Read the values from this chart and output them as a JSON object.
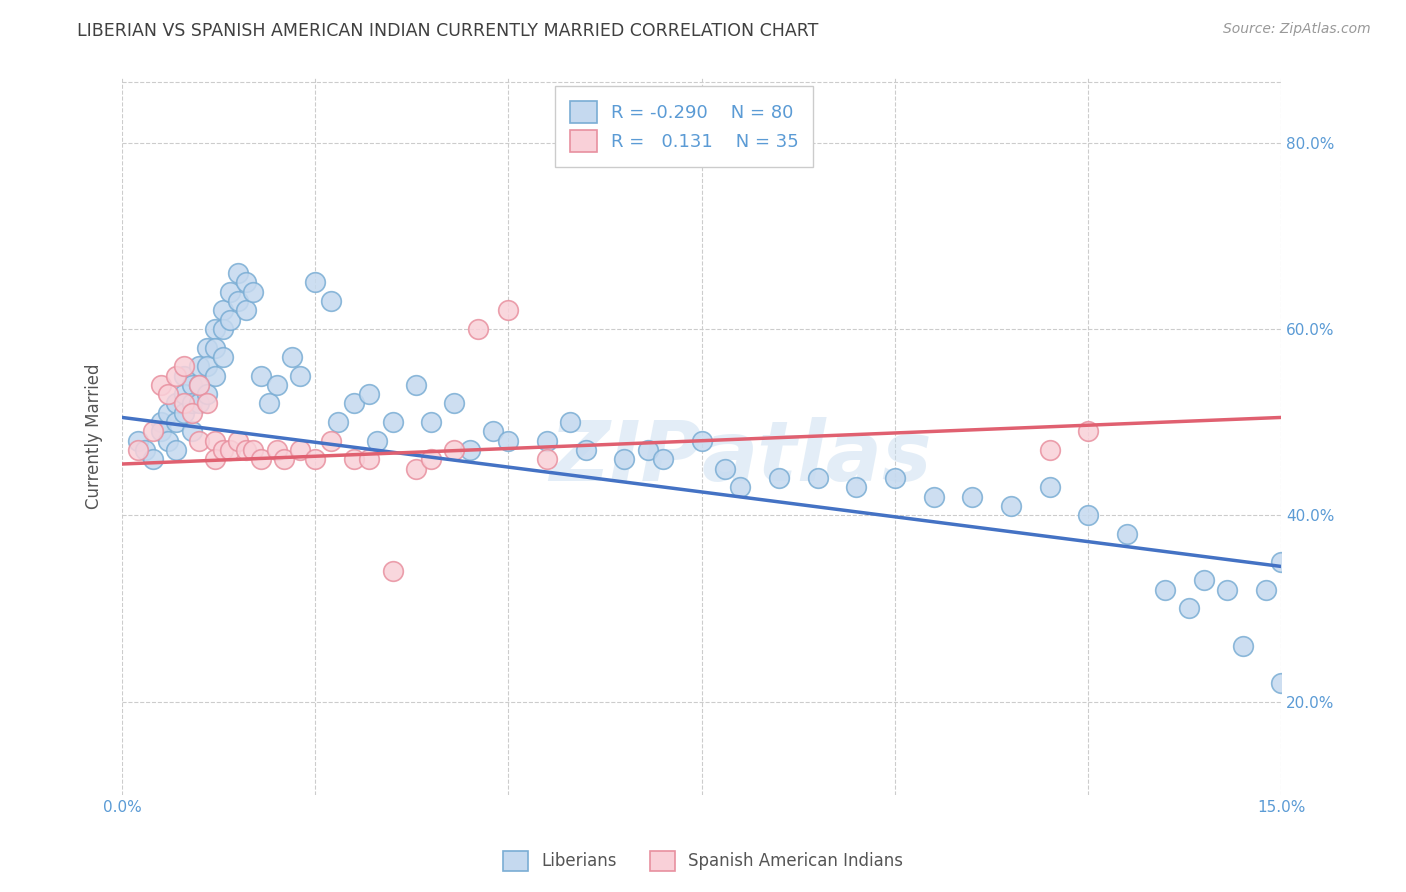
{
  "title": "LIBERIAN VS SPANISH AMERICAN INDIAN CURRENTLY MARRIED CORRELATION CHART",
  "source": "Source: ZipAtlas.com",
  "ylabel": "Currently Married",
  "x_min": 0.0,
  "x_max": 0.15,
  "y_min": 0.1,
  "y_max": 0.87,
  "x_ticks": [
    0.0,
    0.025,
    0.05,
    0.075,
    0.1,
    0.125,
    0.15
  ],
  "x_tick_labels_show": [
    "0.0%",
    "15.0%"
  ],
  "y_ticks": [
    0.2,
    0.4,
    0.6,
    0.8
  ],
  "y_tick_labels": [
    "20.0%",
    "40.0%",
    "60.0%",
    "80.0%"
  ],
  "blue_fill_color": "#c5d9ef",
  "blue_edge_color": "#7aadd4",
  "blue_line_color": "#4472c4",
  "pink_fill_color": "#f9d0d8",
  "pink_edge_color": "#e8909f",
  "pink_line_color": "#e06070",
  "legend_r_blue": "-0.290",
  "legend_n_blue": "80",
  "legend_r_pink": "0.131",
  "legend_n_pink": "35",
  "watermark": "ZIPatlas",
  "blue_scatter_x": [
    0.002,
    0.003,
    0.004,
    0.005,
    0.005,
    0.006,
    0.006,
    0.007,
    0.007,
    0.007,
    0.008,
    0.008,
    0.008,
    0.009,
    0.009,
    0.009,
    0.01,
    0.01,
    0.01,
    0.011,
    0.011,
    0.011,
    0.012,
    0.012,
    0.012,
    0.013,
    0.013,
    0.013,
    0.014,
    0.014,
    0.015,
    0.015,
    0.016,
    0.016,
    0.017,
    0.018,
    0.019,
    0.02,
    0.022,
    0.023,
    0.025,
    0.027,
    0.028,
    0.03,
    0.032,
    0.033,
    0.035,
    0.038,
    0.04,
    0.043,
    0.045,
    0.048,
    0.05,
    0.055,
    0.058,
    0.06,
    0.065,
    0.068,
    0.07,
    0.075,
    0.078,
    0.08,
    0.085,
    0.09,
    0.095,
    0.1,
    0.105,
    0.11,
    0.115,
    0.12,
    0.125,
    0.13,
    0.135,
    0.138,
    0.14,
    0.143,
    0.145,
    0.148,
    0.15,
    0.15
  ],
  "blue_scatter_y": [
    0.48,
    0.47,
    0.46,
    0.5,
    0.49,
    0.51,
    0.48,
    0.52,
    0.5,
    0.47,
    0.55,
    0.53,
    0.51,
    0.54,
    0.52,
    0.49,
    0.56,
    0.54,
    0.52,
    0.58,
    0.56,
    0.53,
    0.6,
    0.58,
    0.55,
    0.62,
    0.6,
    0.57,
    0.64,
    0.61,
    0.66,
    0.63,
    0.65,
    0.62,
    0.64,
    0.55,
    0.52,
    0.54,
    0.57,
    0.55,
    0.65,
    0.63,
    0.5,
    0.52,
    0.53,
    0.48,
    0.5,
    0.54,
    0.5,
    0.52,
    0.47,
    0.49,
    0.48,
    0.48,
    0.5,
    0.47,
    0.46,
    0.47,
    0.46,
    0.48,
    0.45,
    0.43,
    0.44,
    0.44,
    0.43,
    0.44,
    0.42,
    0.42,
    0.41,
    0.43,
    0.4,
    0.38,
    0.32,
    0.3,
    0.33,
    0.32,
    0.26,
    0.32,
    0.22,
    0.35
  ],
  "pink_scatter_x": [
    0.002,
    0.004,
    0.005,
    0.006,
    0.007,
    0.008,
    0.008,
    0.009,
    0.01,
    0.01,
    0.011,
    0.012,
    0.012,
    0.013,
    0.014,
    0.015,
    0.016,
    0.017,
    0.018,
    0.02,
    0.021,
    0.023,
    0.025,
    0.027,
    0.03,
    0.032,
    0.035,
    0.038,
    0.04,
    0.043,
    0.046,
    0.05,
    0.055,
    0.12,
    0.125
  ],
  "pink_scatter_y": [
    0.47,
    0.49,
    0.54,
    0.53,
    0.55,
    0.52,
    0.56,
    0.51,
    0.48,
    0.54,
    0.52,
    0.48,
    0.46,
    0.47,
    0.47,
    0.48,
    0.47,
    0.47,
    0.46,
    0.47,
    0.46,
    0.47,
    0.46,
    0.48,
    0.46,
    0.46,
    0.34,
    0.45,
    0.46,
    0.47,
    0.6,
    0.62,
    0.46,
    0.47,
    0.49
  ],
  "blue_trend_x": [
    0.0,
    0.15
  ],
  "blue_trend_y": [
    0.505,
    0.345
  ],
  "pink_trend_x": [
    0.0,
    0.15
  ],
  "pink_trend_y": [
    0.455,
    0.505
  ],
  "grid_color": "#cccccc",
  "title_color": "#404040",
  "tick_label_color": "#5b9bd5"
}
